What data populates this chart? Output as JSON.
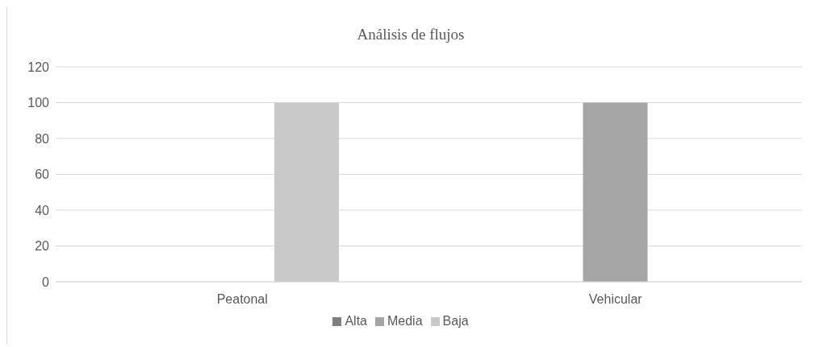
{
  "chart_data": {
    "type": "bar",
    "title": "Análisis de flujos",
    "categories": [
      "Peatonal",
      "Vehicular"
    ],
    "series": [
      {
        "name": "Alta",
        "color": "#7f7f7f",
        "values": [
          0,
          0
        ]
      },
      {
        "name": "Media",
        "color": "#a5a5a5",
        "values": [
          0,
          100
        ]
      },
      {
        "name": "Baja",
        "color": "#c9c9c9",
        "values": [
          100,
          0
        ]
      }
    ],
    "ylim": [
      0,
      120
    ],
    "yticks": [
      0,
      20,
      40,
      60,
      80,
      100,
      120
    ],
    "grid": "y",
    "legend": "bottom"
  }
}
